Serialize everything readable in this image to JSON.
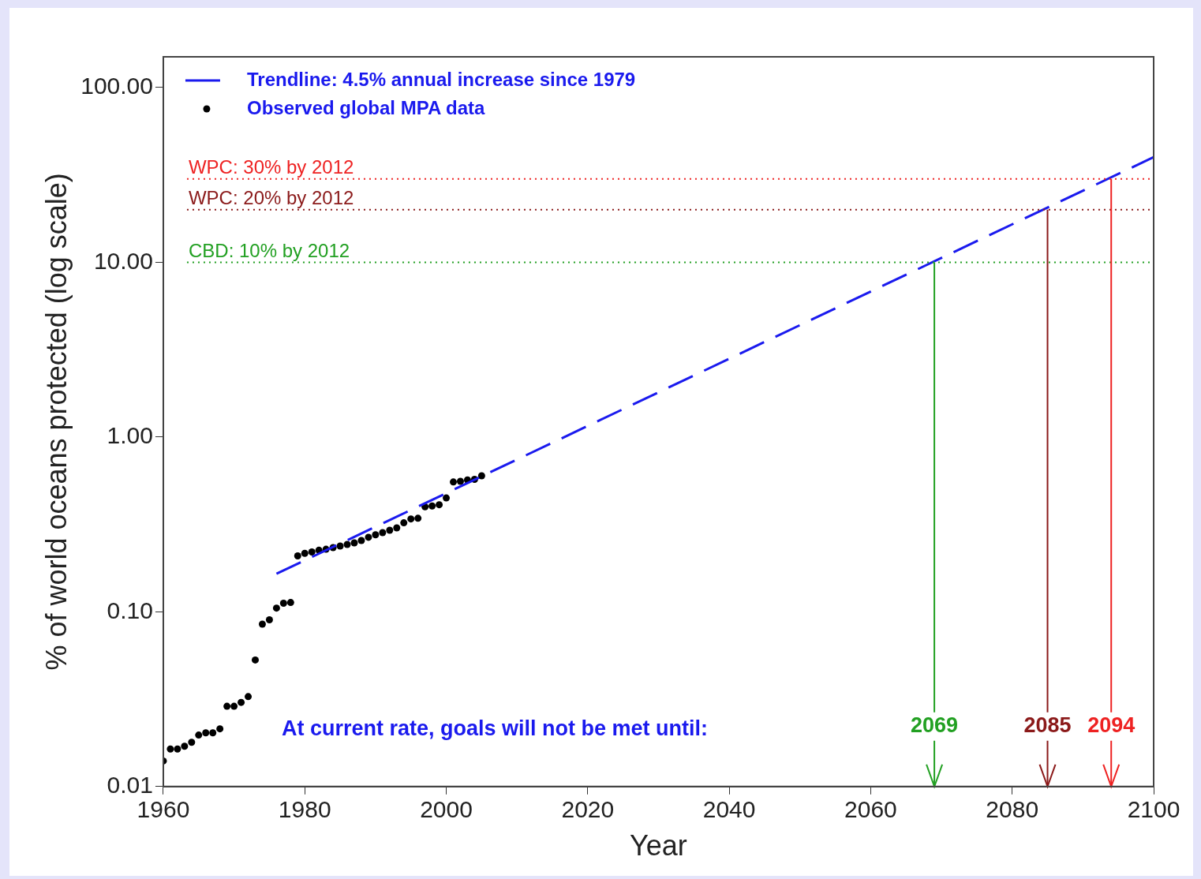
{
  "chart_data": {
    "type": "scatter",
    "xlabel": "Year",
    "ylabel": "% of world oceans protected (log scale)",
    "series": [
      {
        "name": "Trendline: 4.5% annual increase since 1979",
        "type": "line",
        "color": "#1a1aee",
        "line_style": "dashed",
        "marker": "none",
        "x": [
          1976,
          2100
        ],
        "values": [
          0.165,
          40
        ]
      },
      {
        "name": "Observed global MPA data",
        "type": "scatter",
        "color": "#000000",
        "marker": "circle",
        "x": [
          1960,
          1961,
          1962,
          1963,
          1964,
          1965,
          1966,
          1967,
          1968,
          1969,
          1970,
          1971,
          1972,
          1973,
          1974,
          1975,
          1976,
          1977,
          1978,
          1979,
          1980,
          1981,
          1982,
          1983,
          1984,
          1985,
          1986,
          1987,
          1988,
          1989,
          1990,
          1991,
          1992,
          1993,
          1994,
          1995,
          1996,
          1997,
          1998,
          1999,
          2000,
          2001,
          2002,
          2003,
          2004,
          2005
        ],
        "values": [
          0.014,
          0.0164,
          0.0164,
          0.017,
          0.0179,
          0.0197,
          0.0203,
          0.0203,
          0.0214,
          0.0288,
          0.0288,
          0.0303,
          0.0327,
          0.053,
          0.085,
          0.09,
          0.105,
          0.112,
          0.113,
          0.209,
          0.216,
          0.22,
          0.225,
          0.228,
          0.233,
          0.238,
          0.243,
          0.248,
          0.256,
          0.267,
          0.276,
          0.284,
          0.293,
          0.302,
          0.323,
          0.34,
          0.343,
          0.399,
          0.403,
          0.41,
          0.448,
          0.553,
          0.558,
          0.568,
          0.573,
          0.6
        ]
      }
    ],
    "xlim": [
      1960,
      2100
    ],
    "xticks": [
      1960,
      1980,
      2000,
      2020,
      2040,
      2060,
      2080,
      2100
    ],
    "ylim": [
      0.01,
      150
    ],
    "log": "y",
    "yticks": [
      {
        "value": 0.01,
        "label": "0.01"
      },
      {
        "value": 0.1,
        "label": "0.10"
      },
      {
        "value": 1,
        "label": "1.00"
      },
      {
        "value": 10,
        "label": "10.00"
      },
      {
        "value": 100,
        "label": "100.00"
      }
    ],
    "ref_lines": [
      {
        "axis": "y",
        "value": 30,
        "label": "WPC: 30% by 2012",
        "color": "#ee2222",
        "line_style": "dotted"
      },
      {
        "axis": "y",
        "value": 20,
        "label": "WPC: 20% by 2012",
        "color": "#8b1a1a",
        "line_style": "dotted"
      },
      {
        "axis": "y",
        "value": 10,
        "label": "CBD: 10% by 2012",
        "color": "#22a022",
        "line_style": "dotted"
      }
    ],
    "annotations": [
      "At current rate, goals will not be met until:",
      {
        "text": "2069",
        "x": 2069,
        "y": 10
      },
      {
        "text": "2085",
        "x": 2085,
        "y": 20
      },
      {
        "text": "2094",
        "x": 2094,
        "y": 30
      }
    ],
    "legend": "top left",
    "grid": false
  }
}
